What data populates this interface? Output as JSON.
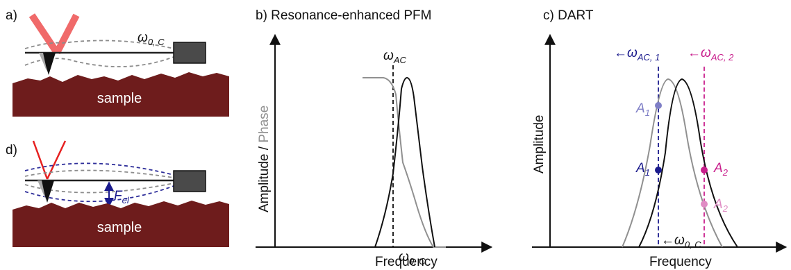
{
  "panels": {
    "a": {
      "label": "a)",
      "omega_main": "ω",
      "omega_sub": "0, C",
      "sample_label": "sample"
    },
    "b": {
      "title": "b) Resonance-enhanced PFM",
      "ylabel_amplitude": "Amplitude",
      "ylabel_sep": " / ",
      "ylabel_phase": "Phase",
      "xlabel": "Frequency",
      "omega_ac_main": "ω",
      "omega_ac_sub": "AC",
      "omega_0c_main": "ω",
      "omega_0c_sub": "0, C"
    },
    "c": {
      "title": "c) DART",
      "ylabel": "Amplitude",
      "xlabel": "Frequency",
      "omega_ac1_arrow": "←",
      "omega_ac1_main": "ω",
      "omega_ac1_sub": "AC, 1",
      "omega_ac2_arrow": "←",
      "omega_ac2_main": "ω",
      "omega_ac2_sub": "AC, 2",
      "omega_0c_arrow": "←",
      "omega_0c_main": "ω",
      "omega_0c_sub": "0, C",
      "A1_faded_main": "A",
      "A1_faded_sub": "1",
      "A1_main": "A",
      "A1_sub": "1",
      "A2_main": "A",
      "A2_sub": "2",
      "A2_faded_main": "A",
      "A2_faded_sub": "2"
    },
    "d": {
      "label": "d)",
      "force_main": "F",
      "force_sub": "el",
      "sample_label": "sample"
    }
  },
  "colors": {
    "laser_a": "#f06a6a",
    "laser_d": "#e62020",
    "sample": "#6e1c1c",
    "deflection_gray": "#8c8c8c",
    "deflection_blue": "#2e2e9a",
    "ac1_blue": "#1a1a8c",
    "ac1_blue_faded": "#7f7fc6",
    "ac2_magenta": "#c81e8c",
    "ac2_magenta_faded": "#e08cc4",
    "phase_gray": "#909090"
  }
}
